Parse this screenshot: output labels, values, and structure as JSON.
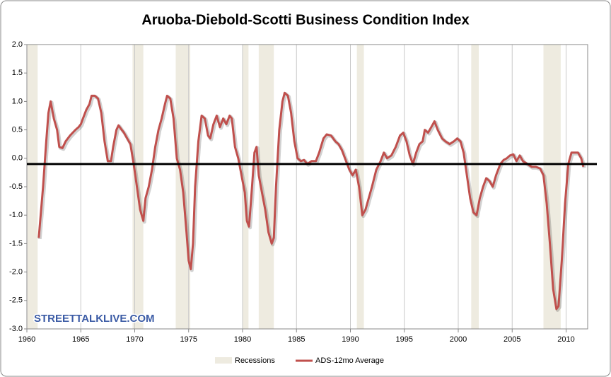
{
  "chart_data": {
    "type": "line",
    "title": "Aruoba-Diebold-Scotti Business Condition Index",
    "watermark": "STREETTALKLIVE.COM",
    "xlim": [
      1960,
      2012
    ],
    "xticks": [
      1960,
      1965,
      1970,
      1975,
      1980,
      1985,
      1990,
      1995,
      2000,
      2005,
      2010
    ],
    "ylim": [
      -3,
      2
    ],
    "yticks": [
      {
        "value": 2,
        "label": "2.0"
      },
      {
        "value": 1.5,
        "label": "1.5"
      },
      {
        "value": 1,
        "label": "1.0"
      },
      {
        "value": 0.5,
        "label": "0.5"
      },
      {
        "value": 0,
        "label": "0.0"
      },
      {
        "value": -0.5,
        "label": "-0.5"
      },
      {
        "value": -1,
        "label": "-1.0"
      },
      {
        "value": -1.5,
        "label": "-1.5"
      },
      {
        "value": -2,
        "label": "-2.0"
      },
      {
        "value": -2.5,
        "label": "-2.5"
      },
      {
        "value": -3,
        "label": "-3.0"
      }
    ],
    "reference_line": -0.1,
    "recessions": {
      "name": "Recessions",
      "color": "#eeebe0",
      "spans": [
        [
          1960.05,
          1961.0
        ],
        [
          1969.8,
          1970.8
        ],
        [
          1973.8,
          1975.15
        ],
        [
          1980.0,
          1980.55
        ],
        [
          1981.5,
          1982.9
        ],
        [
          1990.6,
          1991.25
        ],
        [
          2001.2,
          2001.9
        ],
        [
          2007.9,
          2009.5
        ]
      ]
    },
    "x": [
      1961.1,
      1961.5,
      1961.8,
      1962.0,
      1962.2,
      1962.5,
      1962.8,
      1963.0,
      1963.3,
      1963.6,
      1964.0,
      1964.5,
      1964.8,
      1965.0,
      1965.2,
      1965.5,
      1965.8,
      1966.0,
      1966.3,
      1966.6,
      1966.9,
      1967.2,
      1967.5,
      1967.8,
      1968.0,
      1968.3,
      1968.5,
      1968.8,
      1969.0,
      1969.3,
      1969.6,
      1969.9,
      1970.2,
      1970.5,
      1970.8,
      1971.0,
      1971.3,
      1971.6,
      1971.9,
      1972.2,
      1972.5,
      1972.8,
      1973.0,
      1973.3,
      1973.6,
      1973.9,
      1974.2,
      1974.5,
      1974.8,
      1975.0,
      1975.2,
      1975.4,
      1975.6,
      1975.9,
      1976.2,
      1976.5,
      1976.8,
      1977.0,
      1977.3,
      1977.6,
      1977.9,
      1978.2,
      1978.5,
      1978.8,
      1979.0,
      1979.3,
      1979.6,
      1979.9,
      1980.2,
      1980.4,
      1980.6,
      1980.8,
      1981.1,
      1981.3,
      1981.5,
      1981.8,
      1982.1,
      1982.4,
      1982.7,
      1982.9,
      1983.1,
      1983.4,
      1983.7,
      1983.9,
      1984.2,
      1984.5,
      1984.8,
      1985.1,
      1985.4,
      1985.7,
      1986.0,
      1986.4,
      1986.8,
      1987.1,
      1987.5,
      1987.8,
      1988.2,
      1988.6,
      1988.9,
      1989.2,
      1989.6,
      1989.9,
      1990.2,
      1990.5,
      1990.8,
      1991.1,
      1991.4,
      1991.7,
      1992.0,
      1992.4,
      1992.8,
      1993.1,
      1993.4,
      1993.8,
      1994.2,
      1994.6,
      1994.9,
      1995.2,
      1995.5,
      1995.8,
      1996.1,
      1996.4,
      1996.7,
      1996.9,
      1997.2,
      1997.5,
      1997.8,
      1998.1,
      1998.5,
      1998.8,
      1999.2,
      1999.6,
      1999.9,
      2000.2,
      2000.5,
      2000.8,
      2001.1,
      2001.4,
      2001.7,
      2002.0,
      2002.3,
      2002.6,
      2002.9,
      2003.2,
      2003.5,
      2003.9,
      2004.2,
      2004.5,
      2004.8,
      2005.1,
      2005.4,
      2005.7,
      2006.0,
      2006.4,
      2006.8,
      2007.2,
      2007.6,
      2007.9,
      2008.2,
      2008.5,
      2008.8,
      2009.1,
      2009.3,
      2009.6,
      2009.9,
      2010.2,
      2010.5,
      2010.8,
      2011.1,
      2011.4,
      2011.6
    ],
    "series": [
      {
        "name": "ADS-12mo Average",
        "color": "#c0504d",
        "values": [
          -1.4,
          -0.5,
          0.3,
          0.8,
          1.0,
          0.7,
          0.5,
          0.2,
          0.18,
          0.3,
          0.4,
          0.5,
          0.55,
          0.6,
          0.7,
          0.85,
          0.95,
          1.1,
          1.1,
          1.05,
          0.8,
          0.3,
          -0.05,
          -0.05,
          0.2,
          0.5,
          0.58,
          0.5,
          0.45,
          0.35,
          0.25,
          -0.1,
          -0.5,
          -0.9,
          -1.1,
          -0.7,
          -0.5,
          -0.2,
          0.2,
          0.5,
          0.7,
          0.95,
          1.1,
          1.05,
          0.7,
          0.0,
          -0.2,
          -0.6,
          -1.3,
          -1.8,
          -1.95,
          -1.5,
          -0.5,
          0.3,
          0.75,
          0.7,
          0.4,
          0.35,
          0.6,
          0.75,
          0.55,
          0.7,
          0.6,
          0.75,
          0.7,
          0.2,
          0.0,
          -0.3,
          -0.6,
          -1.1,
          -1.2,
          -0.7,
          0.1,
          0.2,
          -0.3,
          -0.6,
          -0.9,
          -1.3,
          -1.5,
          -1.4,
          -0.5,
          0.5,
          1.0,
          1.15,
          1.1,
          0.8,
          0.3,
          0.0,
          -0.05,
          -0.03,
          -0.1,
          -0.05,
          -0.05,
          0.1,
          0.35,
          0.42,
          0.4,
          0.3,
          0.25,
          0.15,
          -0.05,
          -0.2,
          -0.3,
          -0.2,
          -0.5,
          -1.0,
          -0.9,
          -0.7,
          -0.5,
          -0.2,
          -0.05,
          0.1,
          0.0,
          0.05,
          0.2,
          0.4,
          0.45,
          0.3,
          0.05,
          -0.1,
          0.1,
          0.25,
          0.3,
          0.5,
          0.45,
          0.55,
          0.65,
          0.5,
          0.35,
          0.3,
          0.25,
          0.3,
          0.35,
          0.3,
          0.1,
          -0.3,
          -0.7,
          -0.95,
          -1.0,
          -0.7,
          -0.5,
          -0.35,
          -0.4,
          -0.5,
          -0.3,
          -0.1,
          -0.03,
          0.0,
          0.05,
          0.07,
          -0.05,
          0.05,
          -0.05,
          -0.1,
          -0.15,
          -0.15,
          -0.18,
          -0.3,
          -0.8,
          -1.5,
          -2.3,
          -2.65,
          -2.6,
          -1.8,
          -0.8,
          -0.1,
          0.1,
          0.1,
          0.1,
          0.0,
          -0.15
        ]
      }
    ]
  }
}
